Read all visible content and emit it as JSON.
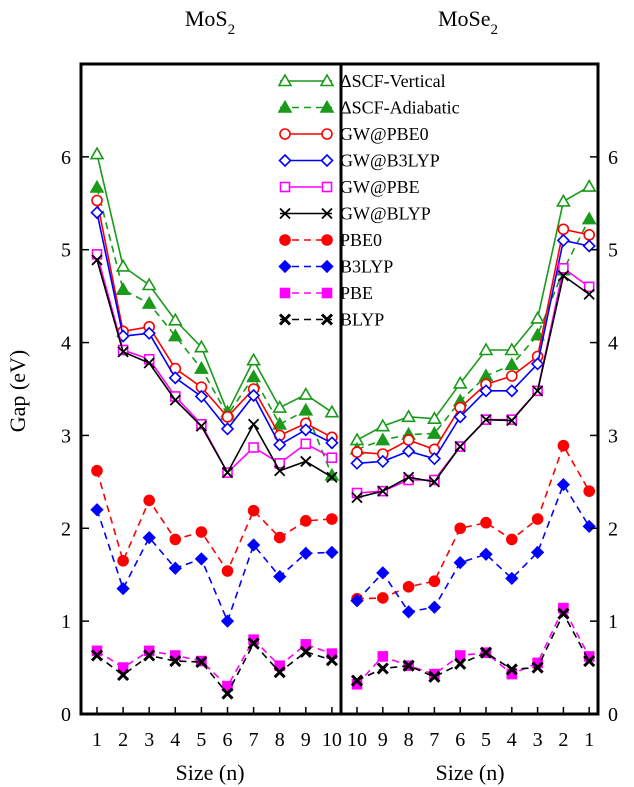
{
  "chart_data": {
    "type": "line",
    "ylabel": "Gap (eV)",
    "ylim": [
      0,
      7
    ],
    "yticks": [
      0,
      1,
      2,
      3,
      4,
      5,
      6
    ],
    "grid": false,
    "legend_placement": "top-right",
    "panels": [
      {
        "title_main": "MoS",
        "title_sub": "2",
        "xlabel": "Size (n)",
        "x": [
          1,
          2,
          3,
          4,
          5,
          6,
          7,
          8,
          9,
          10
        ],
        "ytick_side": "left"
      },
      {
        "title_main": "MoSe",
        "title_sub": "2",
        "xlabel": "Size (n)",
        "x": [
          10,
          9,
          8,
          7,
          6,
          5,
          4,
          3,
          2,
          1
        ],
        "ytick_side": "right"
      }
    ],
    "series": [
      {
        "name": "ΔSCF-Vertical",
        "color": "#1a9a1a",
        "dash": "solid",
        "marker": "triangle",
        "filled": false,
        "values": [
          [
            6.03,
            4.82,
            4.62,
            4.24,
            3.95,
            3.25,
            3.81,
            3.3,
            3.44,
            3.25
          ],
          [
            2.95,
            3.1,
            3.2,
            3.18,
            3.56,
            3.92,
            3.92,
            4.26,
            5.52,
            5.68
          ]
        ]
      },
      {
        "name": "ΔSCF-Adiabatic",
        "color": "#1a9a1a",
        "dash": "dashed",
        "marker": "triangle",
        "filled": true,
        "values": [
          [
            5.67,
            4.57,
            4.42,
            4.07,
            3.72,
            3.22,
            3.63,
            3.12,
            3.27,
            2.57
          ],
          [
            2.85,
            2.95,
            3.01,
            3.02,
            3.37,
            3.64,
            3.76,
            4.08,
            4.78,
            5.33
          ]
        ]
      },
      {
        "name": "GW@PBE0",
        "color": "#ff0000",
        "dash": "solid",
        "marker": "circle",
        "filled": false,
        "values": [
          [
            5.53,
            4.12,
            4.17,
            3.72,
            3.52,
            3.2,
            3.5,
            3.0,
            3.13,
            2.98
          ],
          [
            2.82,
            2.8,
            2.95,
            2.85,
            3.3,
            3.55,
            3.64,
            3.85,
            5.22,
            5.16
          ]
        ]
      },
      {
        "name": "GW@B3LYP",
        "color": "#0000ff",
        "dash": "solid",
        "marker": "diamond",
        "filled": false,
        "values": [
          [
            5.4,
            4.07,
            4.1,
            3.62,
            3.42,
            3.07,
            3.43,
            2.9,
            3.06,
            2.92
          ],
          [
            2.7,
            2.72,
            2.83,
            2.75,
            3.2,
            3.48,
            3.48,
            3.77,
            5.1,
            5.04
          ]
        ]
      },
      {
        "name": "GW@PBE",
        "color": "#ff00ff",
        "dash": "solid",
        "marker": "square",
        "filled": false,
        "values": [
          [
            4.95,
            3.92,
            3.82,
            3.42,
            3.12,
            2.6,
            2.87,
            2.7,
            2.91,
            2.76
          ],
          [
            2.38,
            2.4,
            2.52,
            2.52,
            2.88,
            3.17,
            3.17,
            3.48,
            4.8,
            4.6
          ]
        ]
      },
      {
        "name": "GW@BLYP",
        "color": "#000000",
        "dash": "solid",
        "marker": "x",
        "filled": false,
        "values": [
          [
            4.89,
            3.9,
            3.78,
            3.38,
            3.1,
            2.6,
            3.12,
            2.62,
            2.72,
            2.55
          ],
          [
            2.33,
            2.4,
            2.55,
            2.5,
            2.88,
            3.17,
            3.16,
            3.48,
            4.72,
            4.52
          ]
        ]
      },
      {
        "name": "PBE0",
        "color": "#ff0000",
        "dash": "dashed",
        "marker": "circle",
        "filled": true,
        "values": [
          [
            2.62,
            1.65,
            2.3,
            1.88,
            1.96,
            1.54,
            2.19,
            1.9,
            2.08,
            2.1
          ],
          [
            1.24,
            1.25,
            1.37,
            1.43,
            2.0,
            2.06,
            1.88,
            2.1,
            2.89,
            2.4
          ]
        ]
      },
      {
        "name": "B3LYP",
        "color": "#0000ff",
        "dash": "dashed",
        "marker": "diamond",
        "filled": true,
        "values": [
          [
            2.2,
            1.35,
            1.9,
            1.57,
            1.67,
            1.0,
            1.82,
            1.48,
            1.73,
            1.74
          ],
          [
            1.22,
            1.52,
            1.1,
            1.15,
            1.63,
            1.72,
            1.46,
            1.74,
            2.47,
            2.02
          ]
        ]
      },
      {
        "name": "PBE",
        "color": "#ff00ff",
        "dash": "dashed",
        "marker": "square",
        "filled": true,
        "values": [
          [
            0.68,
            0.5,
            0.68,
            0.63,
            0.57,
            0.3,
            0.8,
            0.52,
            0.75,
            0.65
          ],
          [
            0.32,
            0.62,
            0.52,
            0.43,
            0.63,
            0.66,
            0.43,
            0.55,
            1.14,
            0.62
          ]
        ]
      },
      {
        "name": "BLYP",
        "color": "#000000",
        "dash": "dashed",
        "marker": "x",
        "filled": false,
        "values": [
          [
            0.63,
            0.42,
            0.63,
            0.57,
            0.56,
            0.22,
            0.76,
            0.45,
            0.67,
            0.58
          ],
          [
            0.36,
            0.49,
            0.52,
            0.4,
            0.54,
            0.66,
            0.48,
            0.5,
            1.08,
            0.57
          ]
        ]
      }
    ]
  }
}
